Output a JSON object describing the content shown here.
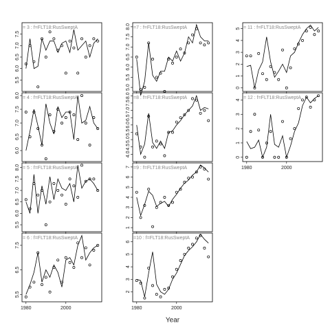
{
  "chart_data": [
    {
      "type": "scatter-line",
      "title": "= 3 : f=FLT18:RusSweptA",
      "x": [
        1980,
        1982,
        1984,
        1986,
        1988,
        1990,
        1992,
        1994,
        1996,
        1998,
        2000,
        2002,
        2004,
        2006,
        2008,
        2010,
        2012,
        2014,
        2016
      ],
      "xlim": [
        1978,
        2018
      ],
      "xticks": [
        1980,
        2000
      ],
      "ylim": [
        5.0,
        8.0
      ],
      "yticks": [
        5.5,
        {
          "value": 6,
          "label": "6.0"
        },
        6.5,
        {
          "value": 7,
          "label": "7.0"
        },
        7.5
      ],
      "series": [
        {
          "style": "points",
          "color": "#000000",
          "values": [
            6.2,
            7.0,
            6.3,
            5.2,
            7.3,
            6.5,
            7.6,
            7.3,
            6.8,
            7.0,
            5.8,
            7.2,
            6.9,
            5.8,
            7.3,
            6.5,
            7.0,
            7.3,
            7.2
          ]
        },
        {
          "style": "line",
          "color": "#000000",
          "values": [
            6.0,
            7.3,
            6.0,
            6.1,
            7.3,
            6.8,
            7.2,
            7.2,
            6.7,
            7.1,
            7.2,
            6.7,
            7.7,
            6.8,
            7.0,
            7.2,
            6.5,
            7.1,
            7.3
          ]
        }
      ]
    },
    {
      "type": "scatter-line",
      "title": "= 4 : f=FLT18:RusSweptA",
      "x": [
        1980,
        1982,
        1984,
        1986,
        1988,
        1990,
        1992,
        1994,
        1996,
        1998,
        2000,
        2002,
        2004,
        2006,
        2008,
        2010,
        2012,
        2014,
        2016
      ],
      "xlim": [
        1978,
        2018
      ],
      "xticks": [
        1980,
        2000
      ],
      "ylim": [
        5.6,
        8.1
      ],
      "yticks": [
        {
          "value": 6,
          "label": "6.0"
        },
        6.5,
        {
          "value": 7,
          "label": "7.0"
        },
        7.5,
        {
          "value": 8,
          "label": "8.0"
        }
      ],
      "series": [
        {
          "style": "points",
          "color": "#000000",
          "values": [
            7.4,
            6.5,
            7.4,
            6.8,
            6.2,
            5.7,
            7.3,
            6.7,
            7.5,
            7.0,
            7.2,
            7.4,
            7.3,
            6.4,
            8.0,
            7.0,
            6.2,
            7.2,
            6.8
          ]
        },
        {
          "style": "line",
          "color": "#000000",
          "values": [
            6.0,
            6.7,
            7.5,
            6.9,
            6.2,
            7.7,
            7.0,
            6.6,
            7.6,
            7.2,
            7.4,
            7.4,
            6.4,
            8.0,
            7.0,
            7.1,
            7.6,
            7.0,
            6.8
          ]
        }
      ]
    },
    {
      "type": "scatter-line",
      "title": "= 5 : f=FLT18:RusSweptA",
      "x": [
        1980,
        1982,
        1984,
        1986,
        1988,
        1990,
        1992,
        1994,
        1996,
        1998,
        2000,
        2002,
        2004,
        2006,
        2008,
        2010,
        2012,
        2014,
        2016
      ],
      "xlim": [
        1978,
        2018
      ],
      "xticks": [
        1980,
        2000
      ],
      "ylim": [
        5.2,
        8.2
      ],
      "yticks": [
        5.5,
        {
          "value": 6,
          "label": "6.0"
        },
        6.5,
        {
          "value": 7,
          "label": "7.0"
        },
        7.5,
        {
          "value": 8,
          "label": "8.0"
        }
      ],
      "series": [
        {
          "style": "points",
          "color": "#000000",
          "values": [
            6.6,
            6.2,
            7.3,
            6.8,
            7.0,
            5.5,
            6.5,
            7.3,
            7.0,
            6.8,
            6.4,
            7.5,
            7.2,
            6.7,
            8.1,
            7.4,
            7.5,
            7.5,
            7.0
          ]
        },
        {
          "style": "line",
          "color": "#000000",
          "values": [
            6.5,
            6.0,
            7.7,
            6.0,
            7.2,
            6.4,
            7.6,
            6.6,
            7.5,
            7.1,
            7.0,
            7.3,
            6.5,
            8.1,
            7.1,
            7.4,
            7.5,
            7.3,
            7.0
          ]
        }
      ]
    },
    {
      "type": "scatter-line",
      "title": "= 6 : f=FLT18:RusSweptA",
      "x": [
        1980,
        1982,
        1984,
        1986,
        1988,
        1990,
        1992,
        1994,
        1996,
        1998,
        2000,
        2002,
        2004,
        2006,
        2008,
        2010,
        2012,
        2014,
        2016
      ],
      "xlim": [
        1978,
        2018
      ],
      "xticks": [
        1980,
        2000
      ],
      "ylim": [
        5.2,
        8.0
      ],
      "yticks": [
        5.5,
        6.5,
        7.5
      ],
      "series": [
        {
          "style": "points",
          "color": "#000000",
          "values": [
            5.4,
            5.8,
            6.0,
            7.2,
            5.9,
            6.2,
            5.6,
            6.6,
            6.9,
            6.0,
            7.0,
            6.8,
            6.6,
            7.6,
            7.0,
            7.4,
            6.7,
            7.3,
            7.5
          ]
        },
        {
          "style": "line",
          "color": "#000000",
          "values": [
            5.5,
            5.9,
            6.4,
            7.2,
            6.0,
            6.5,
            6.2,
            6.7,
            6.4,
            5.8,
            6.9,
            7.0,
            6.7,
            7.5,
            7.9,
            6.9,
            7.2,
            7.4,
            7.5
          ]
        }
      ]
    },
    {
      "type": "scatter-line",
      "title": "=7 : f=FLT18:RusSweptA",
      "x": [
        1980,
        1982,
        1984,
        1986,
        1988,
        1990,
        1992,
        1994,
        1996,
        1998,
        2000,
        2002,
        2004,
        2006,
        2008,
        2010,
        2012,
        2014,
        2016
      ],
      "xlim": [
        1978,
        2018
      ],
      "xticks": [
        1980,
        2000
      ],
      "ylim": [
        4.8,
        8.2
      ],
      "yticks": [
        {
          "value": 5,
          "label": "5.0"
        },
        5.5,
        {
          "value": 6,
          "label": "6.0"
        },
        6.5,
        {
          "value": 7,
          "label": "7.0"
        },
        7.5,
        {
          "value": 8,
          "label": "8.0"
        }
      ],
      "series": [
        {
          "style": "points",
          "color": "#000000",
          "values": [
            6.5,
            4.9,
            5.0,
            7.2,
            6.4,
            5.5,
            5.7,
            4.8,
            6.4,
            6.2,
            6.5,
            6.9,
            6.7,
            7.2,
            7.6,
            7.9,
            7.2,
            7.1,
            7.2
          ]
        },
        {
          "style": "line",
          "color": "#000000",
          "values": [
            6.4,
            4.6,
            5.3,
            7.2,
            5.6,
            5.3,
            5.8,
            5.8,
            6.5,
            6.3,
            6.8,
            6.3,
            6.7,
            7.5,
            7.2,
            8.1,
            7.5,
            7.3,
            7.3
          ]
        }
      ]
    },
    {
      "type": "scatter-line",
      "title": "=8 : f=FLT18:RusSweptA",
      "x": [
        1980,
        1982,
        1984,
        1986,
        1988,
        1990,
        1992,
        1994,
        1996,
        1998,
        2000,
        2002,
        2004,
        2006,
        2008,
        2010,
        2012,
        2014,
        2016
      ],
      "xlim": [
        1978,
        2018
      ],
      "xticks": [
        1980,
        2000
      ],
      "ylim": [
        3.5,
        8.2
      ],
      "yticks": [
        {
          "value": 4,
          "label": "4.0"
        },
        4.5,
        {
          "value": 5,
          "label": "5.0"
        },
        5.5,
        {
          "value": 6,
          "label": "6.0"
        },
        6.5,
        {
          "value": 7,
          "label": "7.0"
        },
        7.5,
        {
          "value": 8,
          "label": "8.0"
        }
      ],
      "series": [
        {
          "style": "points",
          "color": "#000000",
          "values": [
            5.4,
            4.5,
            3.8,
            6.6,
            4.5,
            4.9,
            4.7,
            3.9,
            5.5,
            5.5,
            6.2,
            6.5,
            6.7,
            7.0,
            7.8,
            7.7,
            6.8,
            7.0,
            6.3
          ]
        },
        {
          "style": "line",
          "color": "#000000",
          "values": [
            6.0,
            4.0,
            4.7,
            6.8,
            4.8,
            4.4,
            4.9,
            4.4,
            5.5,
            5.6,
            6.0,
            6.3,
            6.7,
            7.0,
            7.3,
            8.0,
            7.0,
            7.2,
            7.1
          ]
        }
      ]
    },
    {
      "type": "scatter-line",
      "title": "=9 : f=FLT18:RusSweptA",
      "x": [
        1980,
        1982,
        1984,
        1986,
        1988,
        1990,
        1992,
        1994,
        1996,
        1998,
        2000,
        2002,
        2004,
        2006,
        2008,
        2010,
        2012,
        2014,
        2016
      ],
      "xlim": [
        1978,
        2018
      ],
      "xticks": [
        1980,
        2000
      ],
      "ylim": [
        0.6,
        7.4
      ],
      "yticks": [
        1,
        2,
        3,
        4,
        5,
        6,
        7
      ],
      "series": [
        {
          "style": "points",
          "color": "#000000",
          "values": [
            4.5,
            2.0,
            3.2,
            4.8,
            1.1,
            3.0,
            3.5,
            4.0,
            3.2,
            3.5,
            4.5,
            4.8,
            5.5,
            5.9,
            6.0,
            6.5,
            7.0,
            6.8,
            5.8
          ]
        },
        {
          "style": "line",
          "color": "#000000",
          "values": [
            4.0,
            2.2,
            3.3,
            4.6,
            4.2,
            3.1,
            3.4,
            3.6,
            3.1,
            3.8,
            4.3,
            4.9,
            5.4,
            5.7,
            6.2,
            6.5,
            7.2,
            6.9,
            6.5
          ]
        }
      ]
    },
    {
      "type": "scatter-line",
      "title": "=10 : f=FLT18:RusSweptA",
      "x": [
        1980,
        1982,
        1984,
        1986,
        1988,
        1990,
        1992,
        1994,
        1996,
        1998,
        2000,
        2002,
        2004,
        2006,
        2008,
        2010,
        2012,
        2014,
        2016
      ],
      "xlim": [
        1978,
        2018
      ],
      "xticks": [
        1980,
        2000
      ],
      "ylim": [
        1.2,
        6.7
      ],
      "yticks": [
        2,
        3,
        4,
        5,
        6
      ],
      "x_label": "Year",
      "series": [
        {
          "style": "points",
          "color": "#000000",
          "values": [
            2.9,
            2.7,
            1.5,
            3.9,
            2.5,
            1.8,
            1.6,
            2.2,
            2.3,
            3.2,
            3.8,
            4.5,
            5.0,
            5.5,
            5.8,
            6.3,
            6.5,
            5.5,
            4.8
          ]
        },
        {
          "style": "line",
          "color": "#000000",
          "values": [
            3.0,
            2.9,
            1.6,
            3.5,
            5.2,
            2.6,
            2.0,
            1.8,
            2.2,
            3.0,
            3.5,
            4.2,
            4.9,
            5.3,
            5.6,
            6.0,
            6.6,
            6.2,
            5.9
          ]
        }
      ]
    },
    {
      "type": "scatter-line",
      "title": "= 11 : f=FLT18:RusSweptA",
      "x": [
        1980,
        1982,
        1984,
        1986,
        1988,
        1990,
        1992,
        1994,
        1996,
        1998,
        2000,
        2002,
        2004,
        2006,
        2008,
        2010,
        2012,
        2014,
        2016
      ],
      "xlim": [
        1978,
        2018
      ],
      "xticks": [
        1980,
        2000
      ],
      "ylim": [
        -0.3,
        5.5
      ],
      "yticks": [
        0,
        1,
        2,
        3,
        4,
        5
      ],
      "series": [
        {
          "style": "points",
          "color": "#000000",
          "values": [
            2.7,
            2.7,
            0.0,
            2.9,
            1.2,
            0.7,
            1.8,
            1.3,
            0.7,
            3.2,
            0.0,
            1.7,
            3.3,
            3.7,
            4.0,
            4.8,
            5.1,
            4.5,
            4.8
          ]
        },
        {
          "style": "line",
          "color": "#000000",
          "values": [
            1.8,
            1.9,
            0.0,
            1.5,
            2.2,
            4.3,
            2.2,
            0.9,
            1.4,
            2.0,
            1.3,
            2.7,
            3.0,
            3.8,
            4.5,
            5.0,
            5.3,
            4.8,
            5.1
          ]
        }
      ]
    },
    {
      "type": "scatter-line",
      "title": "= 12 : f=FLT18:RusSweptA",
      "x": [
        1980,
        1982,
        1984,
        1986,
        1988,
        1990,
        1992,
        1994,
        1996,
        1998,
        2000,
        2002,
        2004,
        2006,
        2008,
        2010,
        2012,
        2014,
        2016
      ],
      "xlim": [
        1978,
        2018
      ],
      "xticks": [
        1980,
        2000
      ],
      "ylim": [
        -0.3,
        4.5
      ],
      "yticks": [
        0,
        1,
        2,
        3,
        4
      ],
      "series": [
        {
          "style": "points",
          "color": "#000000",
          "values": [
            0.0,
            1.8,
            3.0,
            1.9,
            0.0,
            1.0,
            1.8,
            0.0,
            0.0,
            2.5,
            0.0,
            1.3,
            2.0,
            3.4,
            4.0,
            4.2,
            3.5,
            4.0,
            4.3
          ]
        },
        {
          "style": "line",
          "color": "#000000",
          "values": [
            1.1,
            0.6,
            0.7,
            1.2,
            0.0,
            0.7,
            3.0,
            0.9,
            0.7,
            1.5,
            0.0,
            0.8,
            1.8,
            2.4,
            3.6,
            4.2,
            3.8,
            4.1,
            4.3
          ]
        }
      ]
    }
  ]
}
